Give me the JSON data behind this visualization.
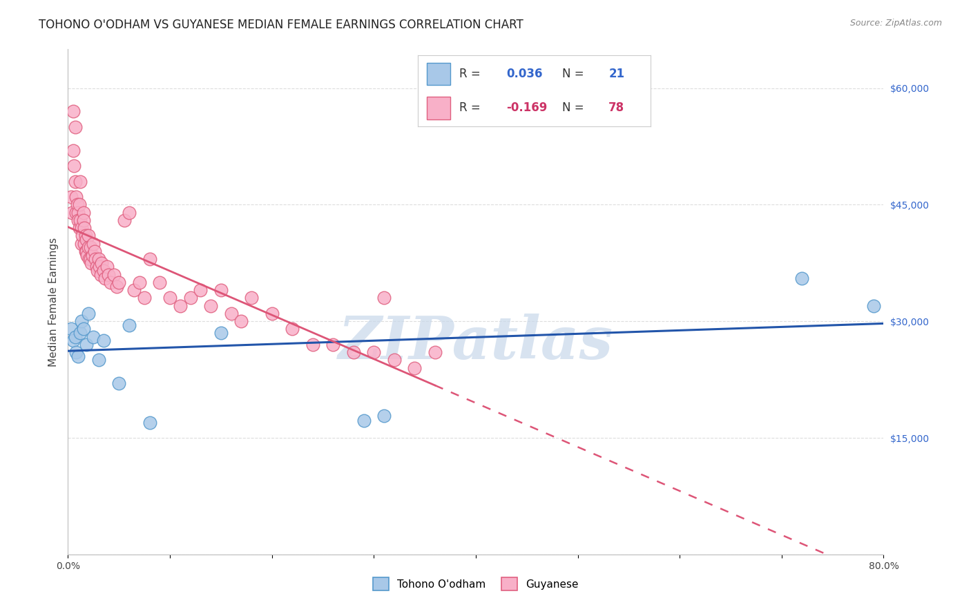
{
  "title": "TOHONO O'ODHAM VS GUYANESE MEDIAN FEMALE EARNINGS CORRELATION CHART",
  "source": "Source: ZipAtlas.com",
  "ylabel": "Median Female Earnings",
  "xlim": [
    0,
    0.8
  ],
  "ylim": [
    0,
    65000
  ],
  "yticks": [
    0,
    15000,
    30000,
    45000,
    60000
  ],
  "ytick_labels": [
    "",
    "$15,000",
    "$30,000",
    "$45,000",
    "$60,000"
  ],
  "xticks": [
    0.0,
    0.1,
    0.2,
    0.3,
    0.4,
    0.5,
    0.6,
    0.7,
    0.8
  ],
  "xtick_labels": [
    "0.0%",
    "",
    "",
    "",
    "",
    "",
    "",
    "",
    "80.0%"
  ],
  "group1_color": "#a8c8e8",
  "group1_edge": "#5599cc",
  "group1_line_color": "#2255aa",
  "group2_color": "#f8b0c8",
  "group2_edge": "#e06080",
  "group2_line_color": "#dd5577",
  "group1_label": "Tohono O'odham",
  "group2_label": "Guyanese",
  "R1": 0.036,
  "N1": 21,
  "R2": -0.169,
  "N2": 78,
  "watermark": "ZIPatlas",
  "watermark_color": "#c8d8ea",
  "background_color": "#ffffff",
  "grid_color": "#dddddd",
  "title_fontsize": 12,
  "axis_label_fontsize": 11,
  "tick_fontsize": 10,
  "legend_fontsize": 12,
  "tohono_x": [
    0.003,
    0.005,
    0.007,
    0.008,
    0.01,
    0.012,
    0.013,
    0.015,
    0.018,
    0.02,
    0.025,
    0.03,
    0.035,
    0.05,
    0.06,
    0.08,
    0.15,
    0.29,
    0.31,
    0.72,
    0.79
  ],
  "tohono_y": [
    29000,
    27500,
    28000,
    26000,
    25500,
    28500,
    30000,
    29000,
    27000,
    31000,
    28000,
    25000,
    27500,
    22000,
    29500,
    17000,
    28500,
    17200,
    17800,
    35500,
    32000
  ],
  "guyanese_x": [
    0.003,
    0.004,
    0.005,
    0.005,
    0.006,
    0.007,
    0.007,
    0.008,
    0.008,
    0.009,
    0.01,
    0.01,
    0.011,
    0.011,
    0.012,
    0.012,
    0.013,
    0.013,
    0.014,
    0.015,
    0.015,
    0.016,
    0.016,
    0.017,
    0.017,
    0.018,
    0.018,
    0.019,
    0.02,
    0.02,
    0.021,
    0.022,
    0.022,
    0.023,
    0.024,
    0.025,
    0.026,
    0.027,
    0.028,
    0.029,
    0.03,
    0.031,
    0.032,
    0.033,
    0.035,
    0.036,
    0.038,
    0.04,
    0.042,
    0.045,
    0.048,
    0.05,
    0.055,
    0.06,
    0.065,
    0.07,
    0.075,
    0.08,
    0.09,
    0.1,
    0.11,
    0.12,
    0.13,
    0.14,
    0.15,
    0.16,
    0.17,
    0.18,
    0.2,
    0.22,
    0.24,
    0.26,
    0.28,
    0.3,
    0.31,
    0.32,
    0.34,
    0.36
  ],
  "guyanese_y": [
    46000,
    44000,
    57000,
    52000,
    50000,
    48000,
    55000,
    46000,
    44000,
    45000,
    44000,
    43000,
    45000,
    42000,
    48000,
    43000,
    42000,
    40000,
    41000,
    44000,
    43000,
    42000,
    40000,
    41000,
    39000,
    40500,
    39000,
    38500,
    41000,
    39500,
    38000,
    39500,
    38000,
    37500,
    38500,
    40000,
    39000,
    38000,
    37000,
    36500,
    38000,
    37000,
    36000,
    37500,
    36500,
    35500,
    37000,
    36000,
    35000,
    36000,
    34500,
    35000,
    43000,
    44000,
    34000,
    35000,
    33000,
    38000,
    35000,
    33000,
    32000,
    33000,
    34000,
    32000,
    34000,
    31000,
    30000,
    33000,
    31000,
    29000,
    27000,
    27000,
    26000,
    26000,
    33000,
    25000,
    24000,
    26000
  ]
}
